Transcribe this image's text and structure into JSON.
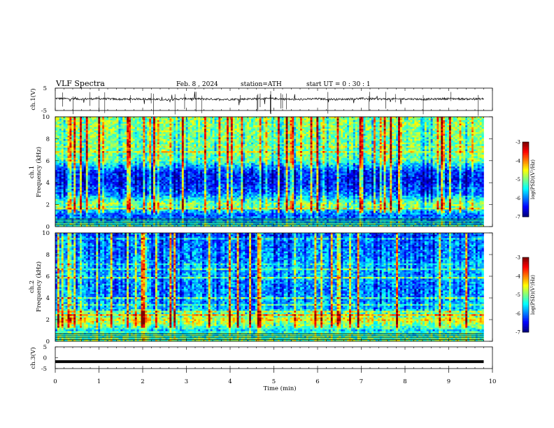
{
  "header": {
    "title": "VLF  Spectra",
    "date": "Feb. 8  , 2024",
    "station": "station=ATH",
    "start": "start  UT  =    0  : 30 : 1"
  },
  "chart_data": [
    {
      "type": "line",
      "panel": "ch1-waveform",
      "ylabel": "ch.1(V)",
      "ylim": [
        -5,
        5
      ],
      "yticks": [
        "5",
        "-5"
      ],
      "xlim": [
        0,
        10
      ],
      "x": [
        0,
        0.5,
        1,
        1.5,
        2,
        2.5,
        3,
        3.5,
        4,
        4.5,
        5,
        5.5,
        6,
        6.5,
        7,
        7.5,
        8,
        8.5,
        9,
        9.5,
        9.8
      ],
      "y": [
        0.4,
        0.1,
        0.3,
        0.0,
        0.2,
        -0.2,
        0.3,
        0.1,
        0.0,
        0.2,
        0.3,
        -0.1,
        0.2,
        0.0,
        0.3,
        0.1,
        0.2,
        0.0,
        0.3,
        0.1,
        0.2
      ]
    },
    {
      "type": "heatmap",
      "panel": "ch1-spectrogram",
      "ylabel": "Frequency  (kHz)",
      "channel": "ch.1",
      "ylim": [
        0,
        10
      ],
      "yticks": [
        "0",
        "2",
        "4",
        "6",
        "8",
        "10"
      ],
      "xlim": [
        0,
        10
      ],
      "colorbar": {
        "label": "log(PSD)(V²/Hz)",
        "range": [
          -7,
          -3
        ],
        "ticks": [
          "-3",
          "-4",
          "-5",
          "-6",
          "-7"
        ]
      },
      "frequency_bands_kHz": [
        0,
        1,
        2,
        3,
        4,
        5,
        6,
        7,
        8,
        9,
        10
      ],
      "typical_log_psd": [
        -5.2,
        -6.2,
        -4.8,
        -6.0,
        -6.4,
        -6.3,
        -5.1,
        -5.0,
        -5.0,
        -4.9,
        -4.9
      ]
    },
    {
      "type": "heatmap",
      "panel": "ch2-spectrogram",
      "ylabel": "Frequency  (kHz)",
      "channel": "ch.2",
      "ylim": [
        0,
        10
      ],
      "yticks": [
        "0",
        "2",
        "4",
        "6",
        "8",
        "10"
      ],
      "xlim": [
        0,
        10
      ],
      "colorbar": {
        "label": "log(PSD)(V²/Hz)",
        "range": [
          -7,
          -3
        ],
        "ticks": [
          "-3",
          "-4",
          "-5",
          "-6",
          "-7"
        ]
      },
      "frequency_bands_kHz": [
        0,
        1,
        2,
        3,
        4,
        5,
        6,
        7,
        8,
        9,
        10
      ],
      "typical_log_psd": [
        -5.0,
        -5.4,
        -4.3,
        -5.6,
        -5.8,
        -5.9,
        -5.7,
        -5.7,
        -5.9,
        -5.9,
        -6.0
      ]
    },
    {
      "type": "line",
      "panel": "ch3-waveform",
      "ylabel": "ch.3(V)",
      "ylim": [
        -5,
        5
      ],
      "yticks": [
        "5",
        "0",
        "-5"
      ],
      "xlim": [
        0,
        10
      ],
      "x": [
        0,
        9.8
      ],
      "y": [
        -1.8,
        -1.8
      ]
    }
  ],
  "xaxis": {
    "label": "Time  (min)",
    "ticks": [
      "0",
      "1",
      "2",
      "3",
      "4",
      "5",
      "6",
      "7",
      "8",
      "9",
      "10"
    ]
  }
}
